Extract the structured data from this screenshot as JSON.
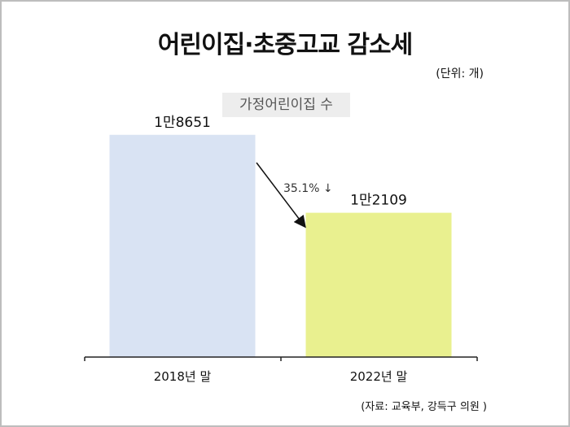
{
  "header": {
    "title": "어린이집·초중고교 감소세",
    "unit": "(단위: 개)",
    "subtitle": "가정어린이집 수"
  },
  "footer": {
    "source": "(자료: 교육부, 강득구 의원 )"
  },
  "chart_data": {
    "type": "bar",
    "title": "어린이집·초중고교 감소세",
    "subtitle": "가정어린이집 수",
    "unit": "(단위: 개)",
    "categories": [
      "2018년 말",
      "2022년 말"
    ],
    "values": [
      18651,
      12109
    ],
    "data_labels": [
      "1만8651",
      "1만2109"
    ],
    "colors": [
      "#d9e3f3",
      "#e9f08f"
    ],
    "change_annotation": "35.1% ↓",
    "ylim": [
      0,
      20000
    ],
    "grid": false,
    "legend": "none"
  }
}
